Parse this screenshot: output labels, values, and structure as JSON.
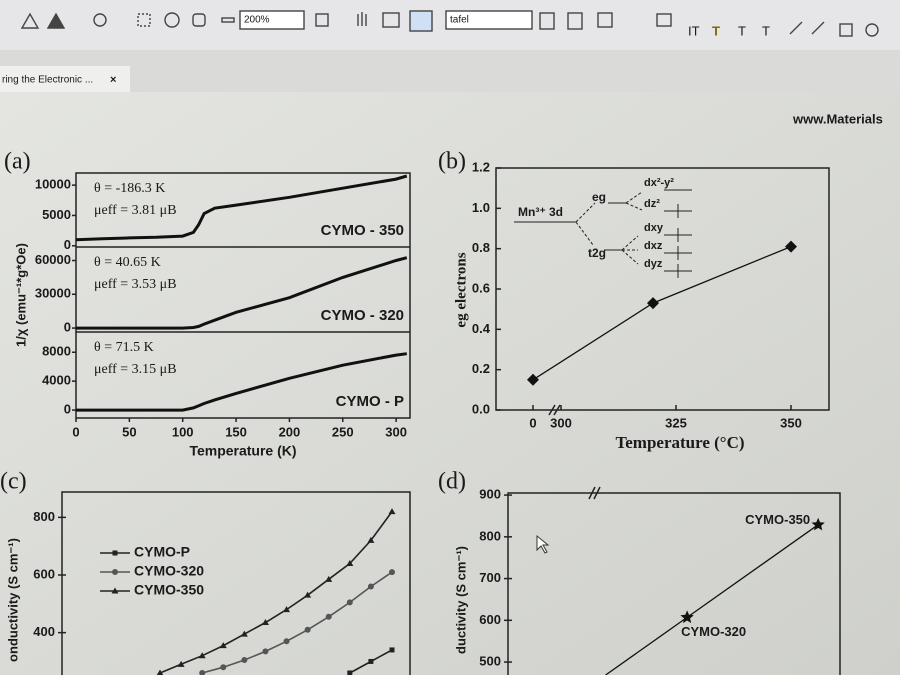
{
  "toolbar": {
    "zoom": "200%",
    "search": "tafel",
    "text_tools": [
      "IT",
      "T",
      "T",
      "T"
    ]
  },
  "tab": {
    "title": "ring the Electronic ...",
    "close": "×"
  },
  "header": {
    "url": "www.Materials"
  },
  "panels": [
    {
      "label": "(a)",
      "type": "stacked-line",
      "x_label": "Temperature (K)",
      "y_label": "1/χ (emu⁻¹*g*Oe)",
      "xlim": [
        0,
        313
      ],
      "xticks": [
        0,
        50,
        100,
        150,
        200,
        250,
        300
      ],
      "subplots": [
        {
          "name": "CYMO - 350",
          "annotations": [
            "θ = -186.3 K",
            "μeff = 3.81 μB"
          ],
          "ylim": [
            -200,
            12000
          ],
          "yticks": [
            0,
            5000,
            10000
          ],
          "x": [
            0,
            25,
            50,
            75,
            100,
            110,
            115,
            120,
            130,
            150,
            200,
            250,
            300,
            310
          ],
          "values": [
            1000,
            1150,
            1300,
            1400,
            1600,
            2200,
            3500,
            5300,
            6200,
            6700,
            8000,
            9500,
            11000,
            11500
          ]
        },
        {
          "name": "CYMO - 320",
          "annotations": [
            "θ = 40.65 K",
            "μeff = 3.53 μB"
          ],
          "ylim": [
            -3500,
            72000
          ],
          "yticks": [
            0,
            30000,
            60000
          ],
          "x": [
            0,
            25,
            50,
            75,
            100,
            110,
            115,
            120,
            130,
            150,
            200,
            250,
            300,
            310
          ],
          "values": [
            0,
            0,
            0,
            0,
            0,
            500,
            1500,
            3500,
            7000,
            14000,
            27000,
            45000,
            60000,
            62500
          ]
        },
        {
          "name": "CYMO - P",
          "annotations": [
            "θ = 71.5 K",
            "μeff = 3.15 μB"
          ],
          "ylim": [
            -1100,
            10800
          ],
          "yticks": [
            0,
            4000,
            8000
          ],
          "x": [
            0,
            25,
            50,
            75,
            100,
            110,
            115,
            120,
            130,
            150,
            200,
            250,
            300,
            310
          ],
          "values": [
            0,
            0,
            0,
            0,
            0,
            300,
            600,
            900,
            1400,
            2300,
            4400,
            6200,
            7600,
            7800
          ]
        }
      ]
    },
    {
      "label": "(b)",
      "type": "line",
      "x_label": "Temperature (°C)",
      "y_label": "eg electrons",
      "ylim": [
        0,
        1.2
      ],
      "yticks": [
        {
          "value": 0,
          "label": "0.0"
        },
        0.2,
        0.4,
        0.6,
        0.8,
        {
          "value": 1,
          "label": "1.0"
        },
        1.2
      ],
      "xticks": [
        0,
        300,
        325,
        350
      ],
      "x": [
        0,
        320,
        350
      ],
      "values": [
        0.15,
        0.53,
        0.81
      ],
      "color": "#111111",
      "marker": "diamond",
      "diagram": {
        "level": "Mn³⁺ 3d",
        "eg": "eg",
        "t2g": "t2g",
        "orbitals": [
          "dx²-y²",
          "dz²",
          "dxy",
          "dxz",
          "dyz"
        ]
      }
    },
    {
      "label": "(c)",
      "type": "line",
      "y_label": "onductivity (S cm⁻¹)",
      "ylim": [
        253,
        888
      ],
      "yticks": [
        400,
        600,
        800
      ],
      "categories": [
        null,
        null,
        null,
        null,
        null,
        null,
        null,
        null,
        null,
        null,
        null,
        null
      ],
      "series": [
        {
          "name": "CYMO-P",
          "color": "#222222",
          "marker": "square",
          "values": [
            null,
            null,
            null,
            null,
            null,
            null,
            null,
            null,
            null,
            260,
            300,
            340
          ]
        },
        {
          "name": "CYMO-320",
          "color": "#555555",
          "marker": "circle",
          "values": [
            null,
            null,
            260,
            280,
            305,
            335,
            370,
            410,
            455,
            505,
            560,
            610
          ]
        },
        {
          "name": "CYMO-350",
          "color": "#222222",
          "marker": "triangle",
          "values": [
            260,
            290,
            320,
            355,
            395,
            435,
            480,
            530,
            585,
            640,
            720,
            820
          ]
        }
      ]
    },
    {
      "label": "(d)",
      "type": "line",
      "y_label": "ductivity (S cm⁻¹)",
      "ylim": [
        469,
        905
      ],
      "yticks": [
        500,
        600,
        700,
        800,
        900
      ],
      "xlim": [
        279,
        355
      ],
      "x": [
        320,
        350
      ],
      "values": [
        607,
        829
      ],
      "point_labels": [
        "CYMO-320",
        "CYMO-350"
      ],
      "marker": "star",
      "color": "#111111"
    }
  ]
}
